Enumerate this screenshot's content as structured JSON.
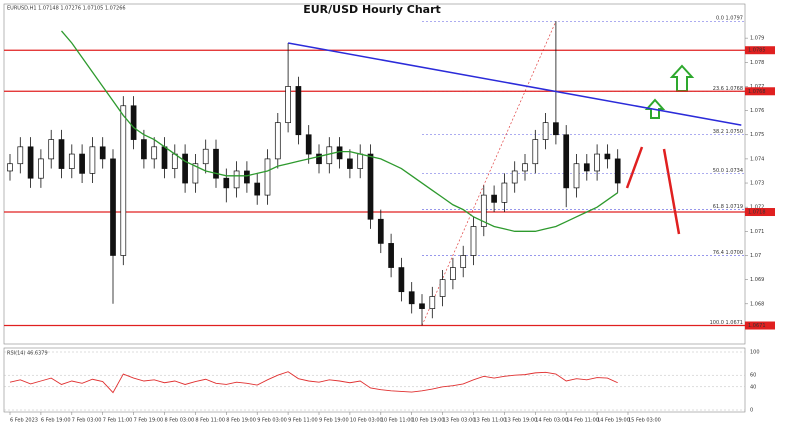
{
  "chart_data": {
    "type": "candlestick",
    "title": "EUR/USD Hourly Chart",
    "symbol_info": "EURUSD,H1 1.07148 1.07276 1.07105 1.07266",
    "categories": [
      "6 Feb 2023",
      null,
      null,
      "6 Feb 19:00",
      null,
      null,
      "7 Feb 03:00",
      null,
      null,
      "7 Feb 11:00",
      null,
      null,
      "7 Feb 19:00",
      null,
      null,
      "8 Feb 03:00",
      null,
      null,
      "8 Feb 11:00",
      null,
      null,
      "8 Feb 19:00",
      null,
      null,
      "9 Feb 03:00",
      null,
      null,
      "9 Feb 11:00",
      null,
      null,
      "9 Feb 19:00",
      null,
      null,
      "10 Feb 03:00",
      null,
      null,
      "10 Feb 11:00",
      null,
      null,
      "10 Feb 19:00",
      null,
      null,
      "13 Feb 03:00",
      null,
      null,
      "13 Feb 11:00",
      null,
      null,
      "13 Feb 19:00",
      null,
      null,
      "14 Feb 03:00",
      null,
      null,
      "14 Feb 11:00",
      null,
      null,
      "14 Feb 19:00",
      null,
      null,
      "15 Feb 03:00",
      null,
      null
    ],
    "candles": [
      [
        1.0735,
        1.0742,
        1.0731,
        1.0738
      ],
      [
        1.0738,
        1.0749,
        1.0734,
        1.0745
      ],
      [
        1.0745,
        1.0749,
        1.0728,
        1.0732
      ],
      [
        1.0732,
        1.0744,
        1.0728,
        1.074
      ],
      [
        1.074,
        1.0752,
        1.0736,
        1.0748
      ],
      [
        1.0748,
        1.0752,
        1.0732,
        1.0736
      ],
      [
        1.0736,
        1.0746,
        1.0732,
        1.0742
      ],
      [
        1.0742,
        1.0746,
        1.073,
        1.0734
      ],
      [
        1.0734,
        1.0749,
        1.073,
        1.0745
      ],
      [
        1.0745,
        1.0749,
        1.0736,
        1.074
      ],
      [
        1.074,
        1.0744,
        1.068,
        1.07
      ],
      [
        1.07,
        1.0766,
        1.0696,
        1.0762
      ],
      [
        1.0762,
        1.0766,
        1.0744,
        1.0748
      ],
      [
        1.0748,
        1.0752,
        1.0736,
        1.074
      ],
      [
        1.074,
        1.0749,
        1.0736,
        1.0745
      ],
      [
        1.0745,
        1.0749,
        1.0732,
        1.0736
      ],
      [
        1.0736,
        1.0746,
        1.0732,
        1.0742
      ],
      [
        1.0742,
        1.0746,
        1.0726,
        1.073
      ],
      [
        1.073,
        1.0742,
        1.0726,
        1.0738
      ],
      [
        1.0738,
        1.0748,
        1.0734,
        1.0744
      ],
      [
        1.0744,
        1.0748,
        1.0728,
        1.0732
      ],
      [
        1.0732,
        1.0736,
        1.0722,
        1.0728
      ],
      [
        1.0728,
        1.0739,
        1.0724,
        1.0735
      ],
      [
        1.0735,
        1.0739,
        1.0726,
        1.073
      ],
      [
        1.073,
        1.0734,
        1.0721,
        1.0725
      ],
      [
        1.0725,
        1.0744,
        1.0721,
        1.074
      ],
      [
        1.074,
        1.0759,
        1.0736,
        1.0755
      ],
      [
        1.0755,
        1.0788,
        1.0751,
        1.077
      ],
      [
        1.077,
        1.0774,
        1.0746,
        1.075
      ],
      [
        1.075,
        1.0754,
        1.0738,
        1.0742
      ],
      [
        1.0742,
        1.0746,
        1.0734,
        1.0738
      ],
      [
        1.0738,
        1.0749,
        1.0734,
        1.0745
      ],
      [
        1.0745,
        1.0749,
        1.0736,
        1.074
      ],
      [
        1.074,
        1.0744,
        1.0732,
        1.0736
      ],
      [
        1.0736,
        1.0746,
        1.0732,
        1.0742
      ],
      [
        1.0742,
        1.0746,
        1.0711,
        1.0715
      ],
      [
        1.0715,
        1.0719,
        1.0701,
        1.0705
      ],
      [
        1.0705,
        1.0709,
        1.0691,
        1.0695
      ],
      [
        1.0695,
        1.0699,
        1.0681,
        1.0685
      ],
      [
        1.0685,
        1.0689,
        1.0676,
        1.068
      ],
      [
        1.068,
        1.0684,
        1.0671,
        1.0678
      ],
      [
        1.0678,
        1.0687,
        1.0674,
        1.0683
      ],
      [
        1.0683,
        1.0694,
        1.0679,
        1.069
      ],
      [
        1.069,
        1.0699,
        1.0686,
        1.0695
      ],
      [
        1.0695,
        1.0704,
        1.0691,
        1.07
      ],
      [
        1.07,
        1.0716,
        1.0696,
        1.0712
      ],
      [
        1.0712,
        1.0729,
        1.0708,
        1.0725
      ],
      [
        1.0725,
        1.0729,
        1.0718,
        1.0722
      ],
      [
        1.0722,
        1.0734,
        1.0718,
        1.073
      ],
      [
        1.073,
        1.0739,
        1.0726,
        1.0735
      ],
      [
        1.0735,
        1.0742,
        1.0731,
        1.0738
      ],
      [
        1.0738,
        1.0752,
        1.0734,
        1.0748
      ],
      [
        1.0748,
        1.0759,
        1.0744,
        1.0755
      ],
      [
        1.0755,
        1.0797,
        1.0746,
        1.075
      ],
      [
        1.075,
        1.0754,
        1.072,
        1.0728
      ],
      [
        1.0728,
        1.0742,
        1.0724,
        1.0738
      ],
      [
        1.0738,
        1.0742,
        1.0731,
        1.0735
      ],
      [
        1.0735,
        1.0746,
        1.0731,
        1.0742
      ],
      [
        1.0742,
        1.0746,
        1.0736,
        1.074
      ],
      [
        1.074,
        1.0744,
        1.0726,
        1.073
      ]
    ],
    "moving_average": {
      "color": "#2e9a2e",
      "values": [
        null,
        null,
        null,
        null,
        null,
        1.0793,
        1.0788,
        1.0782,
        1.0776,
        1.077,
        1.0764,
        1.0758,
        1.0753,
        1.075,
        1.0748,
        1.0745,
        1.0742,
        1.0739,
        1.0737,
        1.0735,
        1.0734,
        1.0733,
        1.0733,
        1.0733,
        1.0734,
        1.0735,
        1.0737,
        1.0738,
        1.0739,
        1.074,
        1.0741,
        1.0742,
        1.0743,
        1.0743,
        1.0742,
        1.0741,
        1.074,
        1.0738,
        1.0736,
        1.0733,
        1.073,
        1.0727,
        1.0724,
        1.0721,
        1.0719,
        1.0716,
        1.0714,
        1.0712,
        1.0711,
        1.071,
        1.071,
        1.071,
        1.0711,
        1.0712,
        1.0714,
        1.0716,
        1.0718,
        1.072,
        1.0723,
        1.0726
      ]
    },
    "levels": [
      1.0785,
      1.0768,
      1.0718,
      1.0671
    ],
    "level_color": "#e02020",
    "trendline": {
      "x": [
        27,
        71
      ],
      "y": [
        1.0788,
        1.0754
      ],
      "color": "#2b2bd9"
    },
    "fib_anchor": {
      "x": [
        40,
        53
      ],
      "y": [
        1.0671,
        1.0797
      ]
    },
    "fib_levels": [
      {
        "value": 1.0797,
        "label": "0.0 1.0797"
      },
      {
        "value": 1.0768,
        "label": "23.6 1.0768"
      },
      {
        "value": 1.075,
        "label": "38.2 1.0750"
      },
      {
        "value": 1.0734,
        "label": "50.0 1.0734"
      },
      {
        "value": 1.0719,
        "label": "61.8 1.0719"
      },
      {
        "value": 1.07,
        "label": "76.4 1.0700"
      },
      {
        "value": 1.0671,
        "label": "100.0 1.0671"
      }
    ],
    "ylim": [
      1.0665,
      1.08
    ],
    "yticks": [
      1.068,
      1.069,
      1.07,
      1.071,
      1.072,
      1.073,
      1.074,
      1.075,
      1.076,
      1.077,
      1.078,
      1.079
    ],
    "rsi": {
      "label": "RSI(14) 46.6379",
      "color": "#e03030",
      "ylim": [
        0,
        100
      ],
      "yticks": [
        0,
        40,
        60,
        100
      ],
      "values": [
        48,
        52,
        45,
        50,
        55,
        44,
        50,
        46,
        53,
        49,
        30,
        62,
        55,
        50,
        52,
        47,
        50,
        44,
        49,
        53,
        46,
        44,
        48,
        46,
        43,
        52,
        60,
        66,
        54,
        50,
        48,
        52,
        50,
        47,
        50,
        38,
        35,
        33,
        32,
        31,
        33,
        36,
        40,
        42,
        45,
        52,
        58,
        55,
        58,
        60,
        61,
        64,
        65,
        62,
        50,
        54,
        52,
        56,
        55,
        47
      ]
    }
  }
}
